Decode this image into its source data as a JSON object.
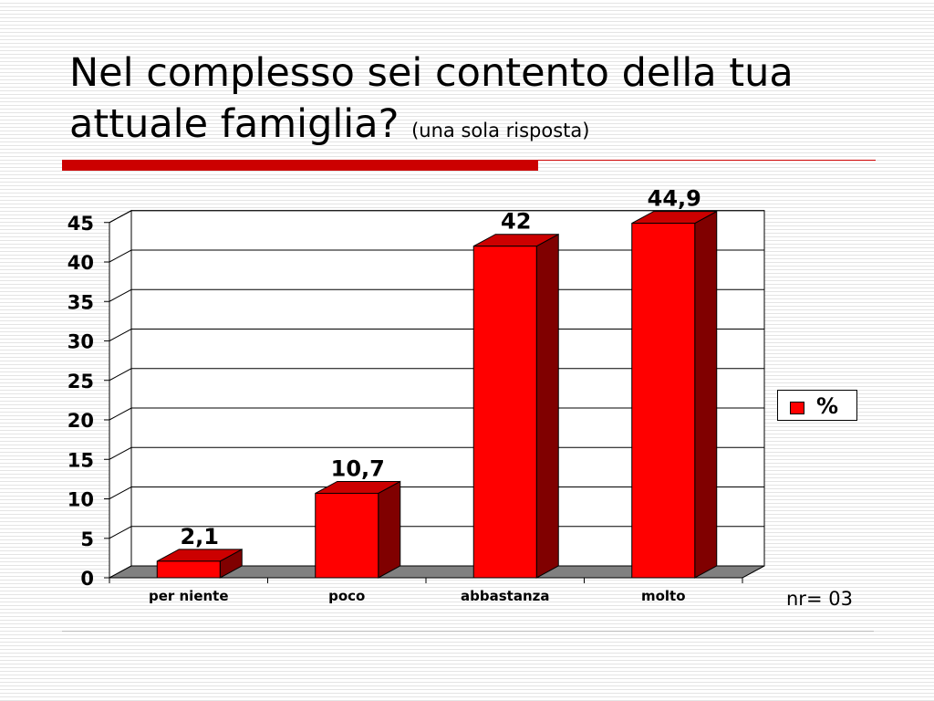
{
  "slide": {
    "title_main": "Nel complesso sei contento della tua attuale famiglia?",
    "title_sub": "(una sola risposta)",
    "note": "nr= 03"
  },
  "colors": {
    "bar_front": "#ff0000",
    "bar_top": "#cc0000",
    "bar_side": "#800000",
    "floor": "#808080",
    "accent_rule": "#cc0000"
  },
  "chart_data": {
    "type": "bar",
    "categories": [
      "per niente",
      "poco",
      "abbastanza",
      "molto"
    ],
    "series": [
      {
        "name": "%",
        "values": [
          2.1,
          10.7,
          42,
          44.9
        ]
      }
    ],
    "data_labels": [
      "2,1",
      "10,7",
      "42",
      "44,9"
    ],
    "yticks": [
      0,
      5,
      10,
      15,
      20,
      25,
      30,
      35,
      40,
      45
    ],
    "ylim": [
      0,
      45
    ],
    "grid": true,
    "legend": "right",
    "style": "3d"
  }
}
